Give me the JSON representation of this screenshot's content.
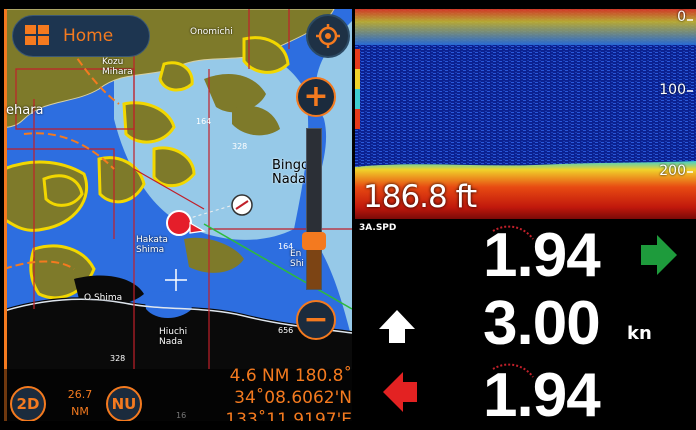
{
  "chart": {
    "home_label": "Home",
    "view_mode_label": "2D",
    "orientation_label": "NU",
    "range_value": "26.7",
    "range_unit": "NM",
    "waypoint_line": "4.6 NM 180.8˚",
    "latitude": "34˚08.6062'N",
    "longitude": "133˚11.9197'E",
    "places": {
      "onomichi": "Onomichi",
      "mihara": "Mihara",
      "mihara_top": "Kozu",
      "ehara": "ehara",
      "bingo": "Bingo\nNada",
      "hakata": "Hakata\nShima",
      "oshima": "O Shima",
      "hiuchi": "Hiuchi\nNada",
      "enshima": "En\nShi"
    },
    "soundings": [
      "164",
      "328",
      "164",
      "656",
      "328",
      "16"
    ],
    "zoom_level": 0.3
  },
  "sonar": {
    "depth_readout": "186.8 ft",
    "depth_scale": [
      "0",
      "100",
      "200"
    ]
  },
  "data": {
    "title": "3A.SPD",
    "top_value": "1.94",
    "speed_value": "3.00",
    "speed_unit": "kn",
    "bottom_value": "1.94"
  },
  "colors": {
    "accent": "#f47a1f",
    "land": "#7e7a2a",
    "deep_water": "#96c9e8",
    "shallow_water": "#2d6ee0",
    "arrow_right": "#1e9b3c",
    "arrow_left": "#e32222",
    "arrow_up": "#ffffff"
  }
}
